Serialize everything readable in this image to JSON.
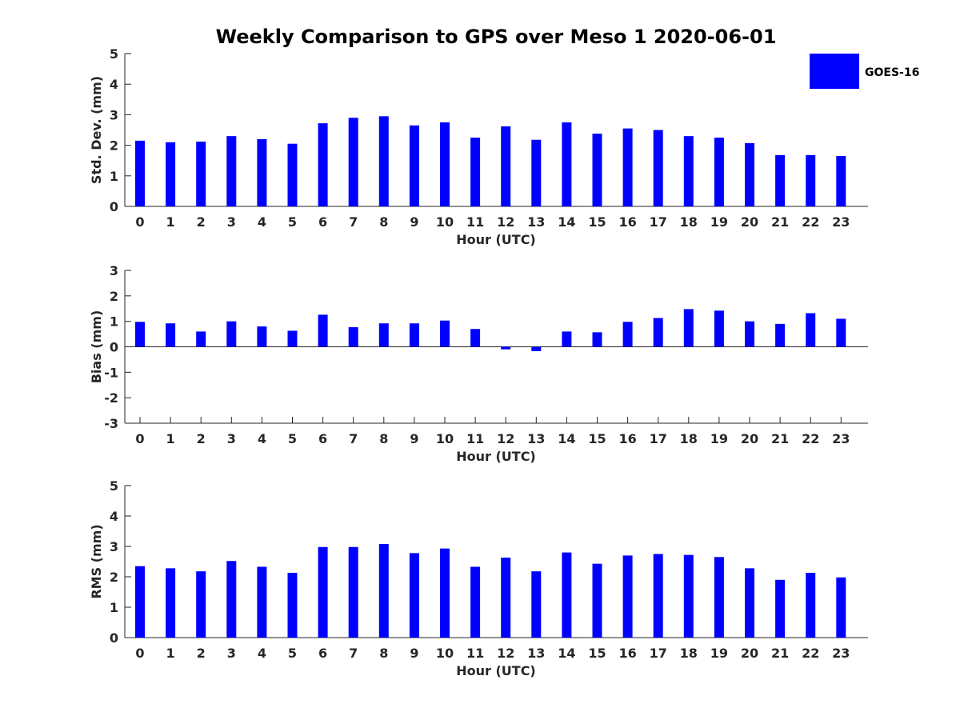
{
  "chart_data": {
    "type": "bar",
    "title": "Weekly Comparison to GPS over Meso 1 2020-06-01",
    "bar_color": "#0000ff",
    "legend": {
      "entries": [
        "GOES-16"
      ],
      "placement": "top-right"
    },
    "categories": [
      "0",
      "1",
      "2",
      "3",
      "4",
      "5",
      "6",
      "7",
      "8",
      "9",
      "10",
      "11",
      "12",
      "13",
      "14",
      "15",
      "16",
      "17",
      "18",
      "19",
      "20",
      "21",
      "22",
      "23"
    ],
    "panels": [
      {
        "id": "std",
        "xlabel": "Hour (UTC)",
        "ylabel": "Std. Dev. (mm)",
        "ylim": [
          0,
          5
        ],
        "yticks": [
          "0",
          "1",
          "2",
          "3",
          "4",
          "5"
        ],
        "series": [
          {
            "name": "GOES-16",
            "values": [
              2.15,
              2.1,
              2.12,
              2.3,
              2.2,
              2.05,
              2.72,
              2.9,
              2.95,
              2.65,
              2.75,
              2.25,
              2.62,
              2.18,
              2.75,
              2.38,
              2.55,
              2.5,
              2.3,
              2.25,
              2.07,
              1.68,
              1.68,
              1.65
            ]
          }
        ]
      },
      {
        "id": "bias",
        "xlabel": "Hour (UTC)",
        "ylabel": "Bias (mm)",
        "ylim": [
          -3,
          3
        ],
        "yticks": [
          "-3",
          "-2",
          "-1",
          "0",
          "1",
          "2",
          "3"
        ],
        "series": [
          {
            "name": "GOES-16",
            "values": [
              0.98,
              0.92,
              0.6,
              1.0,
              0.8,
              0.63,
              1.26,
              0.77,
              0.92,
              0.92,
              1.03,
              0.7,
              -0.1,
              -0.17,
              0.6,
              0.57,
              0.98,
              1.13,
              1.48,
              1.42,
              1.0,
              0.9,
              1.32,
              1.1
            ]
          }
        ]
      },
      {
        "id": "rms",
        "xlabel": "Hour (UTC)",
        "ylabel": "RMS (mm)",
        "ylim": [
          0,
          5
        ],
        "yticks": [
          "0",
          "1",
          "2",
          "3",
          "4",
          "5"
        ],
        "series": [
          {
            "name": "GOES-16",
            "values": [
              2.35,
              2.28,
              2.18,
              2.52,
              2.33,
              2.13,
              2.98,
              2.98,
              3.08,
              2.78,
              2.93,
              2.33,
              2.63,
              2.18,
              2.8,
              2.43,
              2.7,
              2.75,
              2.72,
              2.65,
              2.28,
              1.9,
              2.13,
              1.98
            ]
          }
        ]
      }
    ]
  }
}
